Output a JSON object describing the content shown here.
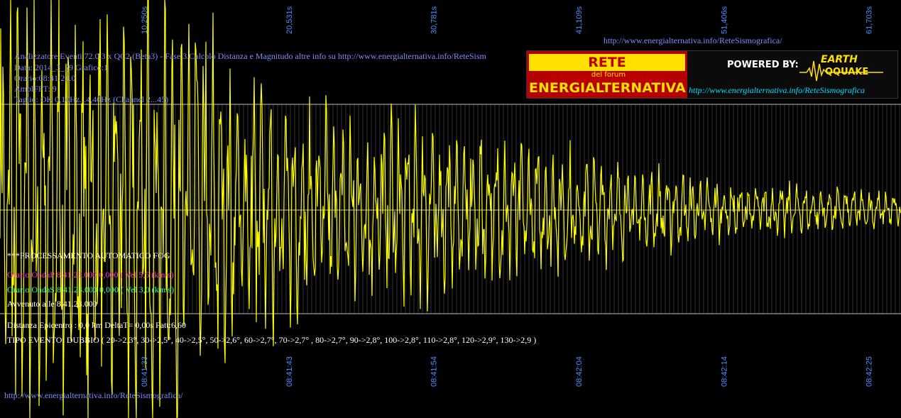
{
  "header": {
    "title": "Analizzatore Eventi 72.0.3 x QC2 (Beta3) - Fase 3.Calcolo Distanza e Magnitudo altre info su http://www.energialternativa.info/ReteSism",
    "data": "Data: 2014_3_29 Grafico:1",
    "orario": "Orario:08:41:23.0",
    "ampl": "AmplFFT: 9",
    "taglio": "Taglio: OK 0,10Hz...4,40Hz        (Channel 2...45)"
  },
  "top_url": "http://www.energialternativa.info/ReteSismografica/",
  "bottom_url": "http://www.energialternativa.info/ReteSismografica/",
  "banner": {
    "line1": "RETE SISMOGRAFICA",
    "line2": "del forum",
    "line3": "ENERGIALTERNATIVA",
    "powered": "POWERED BY:",
    "brand1": "EARTH",
    "brand2": "QQUAKE",
    "url": "http://www.energialternativa.info/ReteSismografica"
  },
  "processing": {
    "title": "***PROCESSAMENTO AUTOMATICO FOG",
    "ondaP": "Orario OndaP 8.41.23.000  0,000 ( Vel 5,5 (km/s)",
    "ondaS": "Orario OndaS 8.41.23.000  0,000 ( Vel 3,0 (km/s)",
    "avvenuto": "Avvenuto alle 8.41.23.000",
    "distanza": "Distanza Epicentro : 0,0 km DeltaT= 0,00s  Fatt:6,60",
    "tipo": "TIPO EVENTO: DUBBIO ( 20->2,3°, 30->2,5°, 40->2,5°, 50->2,6°, 60->2,7°, 70->2,7° , 80->2,7°, 90->2,8°, 100->2,8°, 110->2,8°, 120->2,9°, 130->2,9 )"
  },
  "colors": {
    "background": "#000000",
    "trace": "#ffff00",
    "tick_labels": "#4f8fff",
    "gridlines": "#9a9a9a"
  },
  "chart_data": {
    "type": "line",
    "title": "",
    "top_tick_labels": [
      "10,250s",
      "20,531s",
      "30,781s",
      "41,109s",
      "51,406s",
      "61,703s"
    ],
    "bottom_tick_labels": [
      "08:41:33",
      "08:41:43",
      "08:41:54",
      "08:42:04",
      "08:42:14",
      "08:42:25"
    ],
    "top_tick_seconds": [
      10.25,
      20.531,
      30.781,
      41.109,
      51.406,
      61.703
    ],
    "x_range_seconds": [
      0,
      64
    ],
    "xlabel": "",
    "ylabel": "",
    "grid": true,
    "series": [
      {
        "description_note": "",
        "envelope_time_s": [
          0,
          2,
          4,
          6,
          8,
          10,
          12,
          14,
          16,
          18,
          20,
          25,
          30,
          35,
          40,
          45,
          50,
          55,
          60,
          64
        ],
        "envelope_amplitude": [
          1.0,
          1.0,
          1.0,
          1.0,
          1.0,
          1.0,
          1.0,
          1.0,
          0.6,
          0.6,
          0.5,
          0.45,
          0.4,
          0.33,
          0.28,
          0.2,
          0.15,
          0.12,
          0.1,
          0.08
        ]
      }
    ]
  }
}
